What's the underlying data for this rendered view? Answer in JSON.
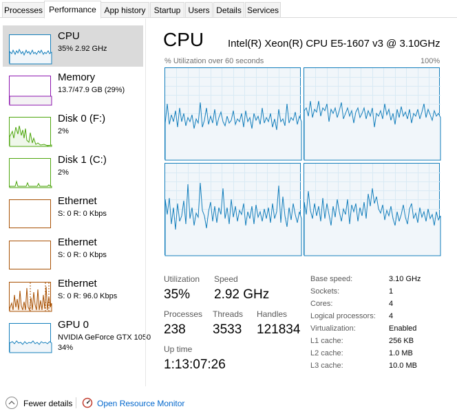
{
  "tabs": [
    {
      "label": "Processes",
      "active": false
    },
    {
      "label": "Performance",
      "active": true
    },
    {
      "label": "App history",
      "active": false
    },
    {
      "label": "Startup",
      "active": false
    },
    {
      "label": "Users",
      "active": false
    },
    {
      "label": "Details",
      "active": false
    },
    {
      "label": "Services",
      "active": false
    }
  ],
  "sidebar": {
    "items": [
      {
        "title": "CPU",
        "sub": "35%  2.92 GHz",
        "sub2": "",
        "color": "#117dbb"
      },
      {
        "title": "Memory",
        "sub": "13.7/47.9 GB (29%)",
        "sub2": "",
        "color": "#8b12ae"
      },
      {
        "title": "Disk 0 (F:)",
        "sub": "2%",
        "sub2": "",
        "color": "#4da60c"
      },
      {
        "title": "Disk 1 (C:)",
        "sub": "2%",
        "sub2": "",
        "color": "#4da60c"
      },
      {
        "title": "Ethernet",
        "sub": "S: 0  R: 0 Kbps",
        "sub2": "",
        "color": "#a74f01"
      },
      {
        "title": "Ethernet",
        "sub": "S: 0  R: 0 Kbps",
        "sub2": "",
        "color": "#a74f01"
      },
      {
        "title": "Ethernet",
        "sub": "S: 0  R: 96.0 Kbps",
        "sub2": "",
        "color": "#a74f01"
      },
      {
        "title": "GPU 0",
        "sub": "NVIDIA GeForce GTX 1050",
        "sub2": "34%",
        "color": "#117dbb"
      }
    ]
  },
  "main": {
    "title": "CPU",
    "cpu_name": "Intel(R) Xeon(R) CPU E5-1607 v3 @ 3.10GHz",
    "graph_caption": "% Utilization over 60 seconds",
    "graph_max": "100%"
  },
  "stats": {
    "utilization_label": "Utilization",
    "utilization": "35%",
    "speed_label": "Speed",
    "speed": "2.92 GHz",
    "processes_label": "Processes",
    "processes": "238",
    "threads_label": "Threads",
    "threads": "3533",
    "handles_label": "Handles",
    "handles": "121834",
    "uptime_label": "Up time",
    "uptime": "1:13:07:26"
  },
  "specs": [
    {
      "label": "Base speed:",
      "value": "3.10 GHz"
    },
    {
      "label": "Sockets:",
      "value": "1"
    },
    {
      "label": "Cores:",
      "value": "4"
    },
    {
      "label": "Logical processors:",
      "value": "4"
    },
    {
      "label": "Virtualization:",
      "value": "Enabled"
    },
    {
      "label": "L1 cache:",
      "value": "256 KB"
    },
    {
      "label": "L2 cache:",
      "value": "1.0 MB"
    },
    {
      "label": "L3 cache:",
      "value": "10.0 MB"
    }
  ],
  "footer": {
    "fewer_details": "Fewer details",
    "open_monitor": "Open Resource Monitor",
    "fewer_icon": "chevron-up-icon",
    "monitor_icon": "resource-monitor-icon"
  },
  "colors": {
    "cpu": "#117dbb",
    "memory": "#8b12ae",
    "disk": "#4da60c",
    "ethernet": "#a74f01",
    "link": "#0066cc"
  }
}
